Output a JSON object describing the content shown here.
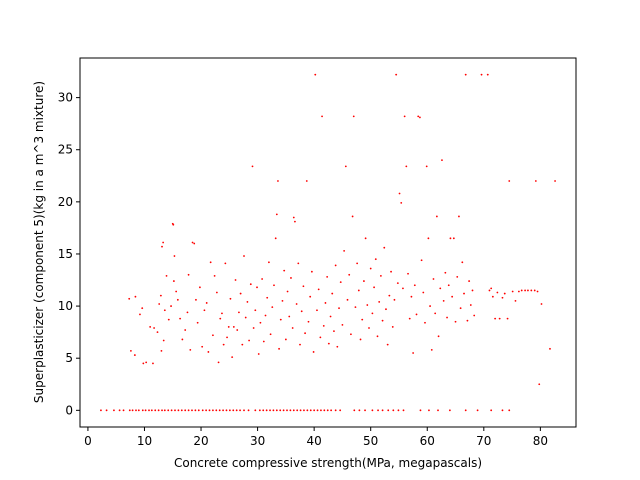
{
  "chart_data": {
    "type": "scatter",
    "xlabel": "Concrete compressive strength(MPa, megapascals)",
    "ylabel": "Superplasticizer (component 5)(kg in a m^3 mixture)",
    "xlim": [
      -1.4,
      86.3
    ],
    "ylim": [
      -1.6,
      33.8
    ],
    "xticks": [
      0,
      10,
      20,
      30,
      40,
      50,
      60,
      70,
      80
    ],
    "yticks": [
      0,
      5,
      10,
      15,
      20,
      25,
      30
    ],
    "grid": false,
    "point_color": "#ff0000",
    "series": [
      {
        "points": [
          [
            2.3,
            0
          ],
          [
            3.3,
            0
          ],
          [
            4.6,
            0
          ],
          [
            5.6,
            0
          ],
          [
            6.3,
            0
          ],
          [
            7.4,
            0
          ],
          [
            7.9,
            0
          ],
          [
            8.5,
            0
          ],
          [
            9.0,
            0
          ],
          [
            9.7,
            0
          ],
          [
            10.2,
            0
          ],
          [
            10.8,
            0
          ],
          [
            11.3,
            0
          ],
          [
            11.9,
            0
          ],
          [
            12.5,
            0
          ],
          [
            13.1,
            0
          ],
          [
            13.6,
            0
          ],
          [
            14.2,
            0
          ],
          [
            14.8,
            0
          ],
          [
            15.4,
            0
          ],
          [
            16.0,
            0
          ],
          [
            16.6,
            0
          ],
          [
            17.2,
            0
          ],
          [
            17.8,
            0
          ],
          [
            18.4,
            0
          ],
          [
            19.0,
            0
          ],
          [
            19.6,
            0
          ],
          [
            20.3,
            0
          ],
          [
            20.9,
            0
          ],
          [
            21.5,
            0
          ],
          [
            22.1,
            0
          ],
          [
            22.7,
            0
          ],
          [
            23.3,
            0
          ],
          [
            23.9,
            0
          ],
          [
            24.5,
            0
          ],
          [
            25.1,
            0
          ],
          [
            25.7,
            0
          ],
          [
            26.3,
            0
          ],
          [
            26.9,
            0
          ],
          [
            27.6,
            0
          ],
          [
            28.4,
            0
          ],
          [
            29.6,
            0
          ],
          [
            30.4,
            0
          ],
          [
            31.0,
            0
          ],
          [
            31.6,
            0
          ],
          [
            32.2,
            0
          ],
          [
            32.8,
            0
          ],
          [
            33.4,
            0
          ],
          [
            34.0,
            0
          ],
          [
            34.6,
            0
          ],
          [
            35.2,
            0
          ],
          [
            35.8,
            0
          ],
          [
            36.4,
            0
          ],
          [
            37.0,
            0
          ],
          [
            37.6,
            0
          ],
          [
            38.2,
            0
          ],
          [
            38.8,
            0
          ],
          [
            39.4,
            0
          ],
          [
            40.0,
            0
          ],
          [
            40.6,
            0
          ],
          [
            41.2,
            0
          ],
          [
            41.8,
            0
          ],
          [
            42.4,
            0
          ],
          [
            43.0,
            0
          ],
          [
            43.8,
            0
          ],
          [
            44.6,
            0
          ],
          [
            47.1,
            0
          ],
          [
            48.0,
            0
          ],
          [
            49.0,
            0
          ],
          [
            50.3,
            0
          ],
          [
            51.3,
            0
          ],
          [
            52.1,
            0
          ],
          [
            53.1,
            0
          ],
          [
            54.0,
            0
          ],
          [
            54.9,
            0
          ],
          [
            55.8,
            0
          ],
          [
            58.8,
            0
          ],
          [
            60.3,
            0
          ],
          [
            61.9,
            0
          ],
          [
            64.0,
            0
          ],
          [
            66.8,
            0
          ],
          [
            68.9,
            0
          ],
          [
            71.3,
            0
          ],
          [
            73.3,
            0
          ],
          [
            74.5,
            0
          ],
          [
            7.3,
            10.7
          ],
          [
            8.4,
            10.9
          ],
          [
            7.6,
            5.7
          ],
          [
            8.3,
            5.3
          ],
          [
            9.8,
            4.5
          ],
          [
            10.3,
            4.6
          ],
          [
            11.5,
            4.5
          ],
          [
            9.2,
            9.2
          ],
          [
            9.6,
            9.8
          ],
          [
            11.0,
            8.0
          ],
          [
            11.7,
            7.9
          ],
          [
            12.3,
            7.5
          ],
          [
            12.6,
            10.2
          ],
          [
            12.9,
            11.0
          ],
          [
            13.1,
            15.7
          ],
          [
            13.3,
            16.1
          ],
          [
            13.0,
            5.7
          ],
          [
            13.4,
            6.7
          ],
          [
            13.6,
            9.6
          ],
          [
            13.9,
            12.9
          ],
          [
            14.3,
            8.7
          ],
          [
            14.7,
            10.0
          ],
          [
            15.0,
            17.9
          ],
          [
            15.1,
            17.8
          ],
          [
            15.2,
            12.4
          ],
          [
            15.3,
            14.8
          ],
          [
            15.6,
            11.4
          ],
          [
            15.9,
            10.6
          ],
          [
            16.3,
            8.8
          ],
          [
            16.7,
            6.8
          ],
          [
            17.2,
            7.7
          ],
          [
            17.6,
            9.4
          ],
          [
            17.8,
            13.0
          ],
          [
            18.1,
            5.8
          ],
          [
            18.5,
            16.1
          ],
          [
            18.8,
            16.0
          ],
          [
            19.1,
            10.6
          ],
          [
            19.4,
            8.4
          ],
          [
            19.8,
            11.8
          ],
          [
            20.2,
            6.1
          ],
          [
            20.6,
            9.6
          ],
          [
            21.0,
            10.3
          ],
          [
            21.3,
            5.6
          ],
          [
            21.7,
            14.2
          ],
          [
            22.1,
            7.2
          ],
          [
            22.4,
            12.9
          ],
          [
            22.8,
            11.3
          ],
          [
            23.1,
            4.6
          ],
          [
            23.4,
            8.8
          ],
          [
            23.7,
            9.3
          ],
          [
            24.0,
            6.3
          ],
          [
            24.3,
            14.1
          ],
          [
            24.6,
            7.0
          ],
          [
            24.9,
            8.0
          ],
          [
            25.2,
            10.7
          ],
          [
            25.5,
            5.1
          ],
          [
            25.8,
            8.0
          ],
          [
            26.1,
            12.5
          ],
          [
            26.4,
            7.7
          ],
          [
            26.7,
            9.4
          ],
          [
            27.0,
            11.2
          ],
          [
            27.3,
            6.3
          ],
          [
            27.6,
            14.8
          ],
          [
            27.9,
            8.9
          ],
          [
            28.2,
            10.4
          ],
          [
            28.5,
            6.7
          ],
          [
            28.8,
            12.1
          ],
          [
            29.1,
            23.4
          ],
          [
            29.3,
            7.9
          ],
          [
            29.6,
            9.6
          ],
          [
            29.9,
            11.8
          ],
          [
            30.2,
            5.4
          ],
          [
            30.5,
            8.4
          ],
          [
            30.8,
            12.6
          ],
          [
            31.1,
            6.6
          ],
          [
            31.4,
            9.1
          ],
          [
            31.7,
            10.8
          ],
          [
            32.0,
            14.2
          ],
          [
            32.3,
            7.3
          ],
          [
            32.6,
            9.9
          ],
          [
            32.9,
            12.0
          ],
          [
            33.2,
            16.5
          ],
          [
            33.4,
            18.8
          ],
          [
            33.6,
            22.0
          ],
          [
            33.8,
            5.9
          ],
          [
            34.1,
            8.7
          ],
          [
            34.4,
            10.5
          ],
          [
            34.7,
            13.4
          ],
          [
            35.0,
            6.8
          ],
          [
            35.3,
            11.4
          ],
          [
            35.6,
            9.0
          ],
          [
            35.9,
            12.7
          ],
          [
            36.2,
            7.9
          ],
          [
            36.4,
            18.5
          ],
          [
            36.6,
            18.1
          ],
          [
            36.9,
            10.2
          ],
          [
            37.2,
            14.1
          ],
          [
            37.5,
            6.3
          ],
          [
            37.8,
            9.5
          ],
          [
            38.1,
            11.9
          ],
          [
            38.4,
            7.4
          ],
          [
            38.7,
            22.0
          ],
          [
            39.0,
            8.5
          ],
          [
            39.3,
            10.9
          ],
          [
            39.6,
            13.3
          ],
          [
            39.9,
            5.6
          ],
          [
            40.2,
            32.2
          ],
          [
            40.5,
            9.6
          ],
          [
            40.8,
            11.6
          ],
          [
            41.1,
            7.0
          ],
          [
            41.4,
            28.2
          ],
          [
            41.7,
            8.1
          ],
          [
            42.0,
            10.3
          ],
          [
            42.3,
            12.8
          ],
          [
            42.6,
            6.4
          ],
          [
            42.9,
            9.0
          ],
          [
            43.2,
            11.2
          ],
          [
            43.5,
            7.6
          ],
          [
            43.8,
            13.9
          ],
          [
            44.1,
            6.1
          ],
          [
            44.4,
            9.8
          ],
          [
            44.7,
            12.3
          ],
          [
            45.0,
            8.2
          ],
          [
            45.3,
            15.3
          ],
          [
            45.6,
            23.4
          ],
          [
            45.9,
            10.6
          ],
          [
            46.2,
            13.0
          ],
          [
            46.5,
            7.3
          ],
          [
            46.8,
            18.6
          ],
          [
            47.0,
            28.2
          ],
          [
            47.3,
            9.9
          ],
          [
            47.6,
            14.1
          ],
          [
            47.9,
            11.5
          ],
          [
            48.2,
            6.8
          ],
          [
            48.5,
            8.7
          ],
          [
            48.8,
            12.4
          ],
          [
            49.1,
            16.5
          ],
          [
            49.4,
            10.1
          ],
          [
            49.7,
            7.9
          ],
          [
            50.0,
            13.6
          ],
          [
            50.3,
            9.3
          ],
          [
            50.6,
            11.8
          ],
          [
            50.9,
            14.5
          ],
          [
            51.2,
            7.1
          ],
          [
            51.5,
            10.4
          ],
          [
            51.8,
            12.9
          ],
          [
            52.1,
            8.6
          ],
          [
            52.4,
            15.6
          ],
          [
            52.7,
            9.7
          ],
          [
            53.0,
            6.3
          ],
          [
            53.3,
            11.0
          ],
          [
            53.6,
            13.3
          ],
          [
            53.9,
            8.0
          ],
          [
            54.2,
            10.6
          ],
          [
            54.5,
            32.2
          ],
          [
            54.8,
            12.2
          ],
          [
            55.1,
            20.8
          ],
          [
            55.4,
            19.9
          ],
          [
            55.7,
            11.7
          ],
          [
            56.0,
            28.2
          ],
          [
            56.3,
            23.4
          ],
          [
            56.6,
            13.1
          ],
          [
            56.9,
            8.8
          ],
          [
            57.2,
            10.9
          ],
          [
            57.5,
            5.5
          ],
          [
            57.8,
            12.0
          ],
          [
            58.1,
            9.2
          ],
          [
            58.4,
            28.2
          ],
          [
            58.7,
            28.1
          ],
          [
            59.0,
            14.4
          ],
          [
            59.3,
            11.3
          ],
          [
            59.6,
            8.4
          ],
          [
            59.9,
            23.4
          ],
          [
            60.2,
            16.5
          ],
          [
            60.5,
            10.0
          ],
          [
            60.8,
            5.8
          ],
          [
            61.1,
            12.6
          ],
          [
            61.4,
            9.3
          ],
          [
            61.7,
            18.6
          ],
          [
            62.0,
            7.1
          ],
          [
            62.3,
            11.7
          ],
          [
            62.6,
            24.0
          ],
          [
            62.9,
            10.5
          ],
          [
            63.2,
            13.2
          ],
          [
            63.5,
            8.9
          ],
          [
            63.8,
            12.0
          ],
          [
            64.1,
            16.5
          ],
          [
            64.4,
            10.9
          ],
          [
            64.7,
            16.5
          ],
          [
            65.0,
            8.5
          ],
          [
            65.3,
            12.8
          ],
          [
            65.6,
            18.6
          ],
          [
            65.9,
            9.8
          ],
          [
            66.2,
            14.2
          ],
          [
            66.5,
            11.2
          ],
          [
            66.8,
            32.2
          ],
          [
            67.1,
            8.6
          ],
          [
            67.4,
            12.4
          ],
          [
            67.7,
            10.1
          ],
          [
            68.0,
            11.5
          ],
          [
            68.3,
            9.1
          ],
          [
            69.6,
            32.2
          ],
          [
            70.7,
            32.2
          ],
          [
            71.0,
            11.5
          ],
          [
            71.3,
            11.7
          ],
          [
            71.6,
            10.9
          ],
          [
            72.0,
            8.8
          ],
          [
            72.4,
            11.3
          ],
          [
            72.8,
            8.8
          ],
          [
            73.3,
            10.8
          ],
          [
            73.7,
            11.2
          ],
          [
            74.2,
            8.8
          ],
          [
            74.5,
            22.0
          ],
          [
            75.1,
            11.4
          ],
          [
            75.6,
            10.5
          ],
          [
            76.2,
            11.4
          ],
          [
            76.7,
            11.5
          ],
          [
            77.3,
            11.5
          ],
          [
            77.8,
            11.5
          ],
          [
            78.4,
            11.5
          ],
          [
            79.0,
            11.5
          ],
          [
            79.2,
            22.0
          ],
          [
            79.5,
            11.4
          ],
          [
            79.8,
            2.5
          ],
          [
            80.2,
            10.2
          ],
          [
            81.7,
            5.9
          ],
          [
            82.6,
            22.0
          ]
        ]
      }
    ]
  }
}
